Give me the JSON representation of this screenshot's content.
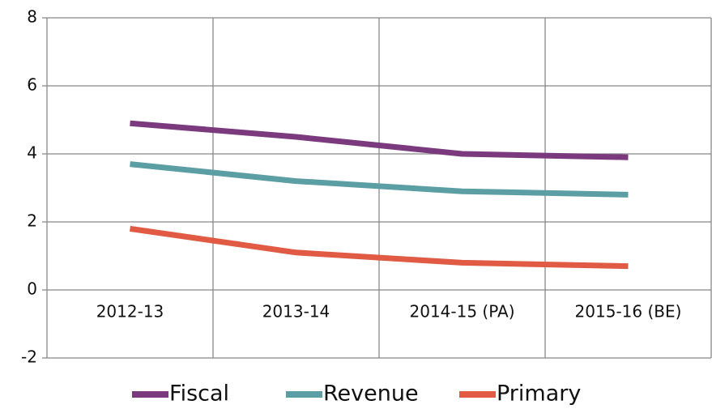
{
  "chart_data": {
    "type": "line",
    "categories": [
      "2012-13",
      "2013-14",
      "2014-15 (PA)",
      "2015-16 (BE)"
    ],
    "series": [
      {
        "name": "Fiscal",
        "color": "#7b3a7e",
        "values": [
          4.9,
          4.5,
          4.0,
          3.9
        ]
      },
      {
        "name": "Revenue",
        "color": "#5b9ea4",
        "values": [
          3.7,
          3.2,
          2.9,
          2.8
        ]
      },
      {
        "name": "Primary",
        "color": "#e05a44",
        "values": [
          1.8,
          1.1,
          0.8,
          0.7
        ]
      }
    ],
    "ylim": [
      -2,
      8
    ],
    "yticks": [
      -2,
      0,
      2,
      4,
      6,
      8
    ],
    "grid": true,
    "legend": "bottom"
  }
}
